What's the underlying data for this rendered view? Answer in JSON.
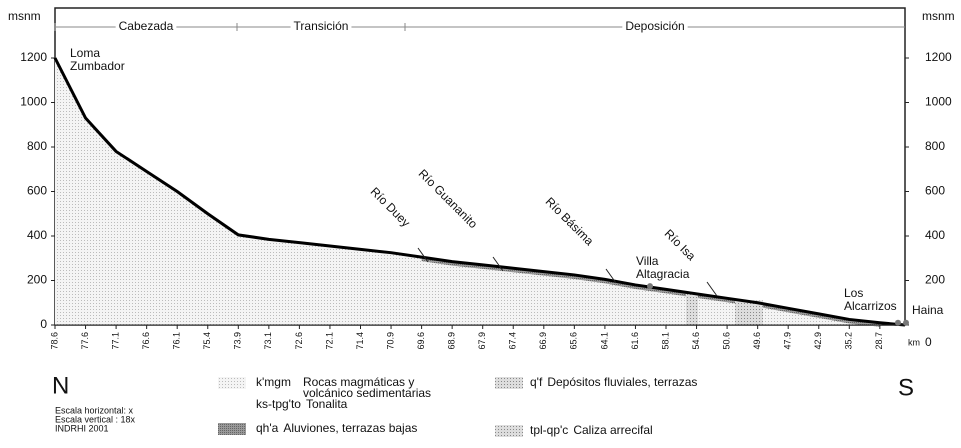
{
  "chart_data": {
    "type": "line",
    "ylabel": "msnm",
    "y2label": "msnm",
    "xlabel": "km",
    "categories": [
      "78.6",
      "77.6",
      "77.1",
      "76.6",
      "76.1",
      "75.4",
      "73.9",
      "73.1",
      "72.6",
      "72.1",
      "71.4",
      "70.9",
      "69.6",
      "68.9",
      "67.9",
      "67.4",
      "66.9",
      "65.6",
      "64.1",
      "61.6",
      "58.1",
      "54.6",
      "50.6",
      "49.6",
      "47.9",
      "42.9",
      "35.2",
      "28.7"
    ],
    "values": [
      1200,
      930,
      780,
      690,
      600,
      500,
      405,
      385,
      370,
      355,
      340,
      325,
      305,
      285,
      270,
      255,
      240,
      225,
      205,
      180,
      160,
      140,
      120,
      100,
      75,
      50,
      25,
      10
    ],
    "color": "#000000",
    "ylim": [
      0,
      1200
    ],
    "yticks": [
      0,
      200,
      400,
      600,
      800,
      1000,
      1200
    ],
    "y2lim": [
      0,
      1200
    ],
    "y2ticks": [
      0,
      200,
      400,
      600,
      800,
      1000,
      1200
    ],
    "sections": [
      "Cabezada",
      "Transición",
      "Deposición"
    ],
    "annotations": [
      "Loma\nZumbador",
      "Río Duey",
      "Río Guananito",
      "Río Básima",
      "Villa\nAltagracia",
      "Río Isa",
      "Los\nAlcarrizos",
      "Haina"
    ],
    "compass": [
      "N",
      "S"
    ],
    "notes": [
      "Escala horizontal: x",
      "Escala vertical : 18x",
      "INDRHI 2001"
    ],
    "legend": [
      {
        "code": "k'mgm",
        "label": "Rocas magmáticas y\nvolcánico sedimentarias"
      },
      {
        "code": "ks-tpg'to",
        "label": "Tonalita"
      },
      {
        "code": "qh'a",
        "label": "Aluviones, terrazas bajas"
      },
      {
        "code": "q'f",
        "label": "Depósitos fluviales, terrazas"
      },
      {
        "code": "tpl-qp'c",
        "label": "Caliza arrecifal"
      }
    ]
  }
}
